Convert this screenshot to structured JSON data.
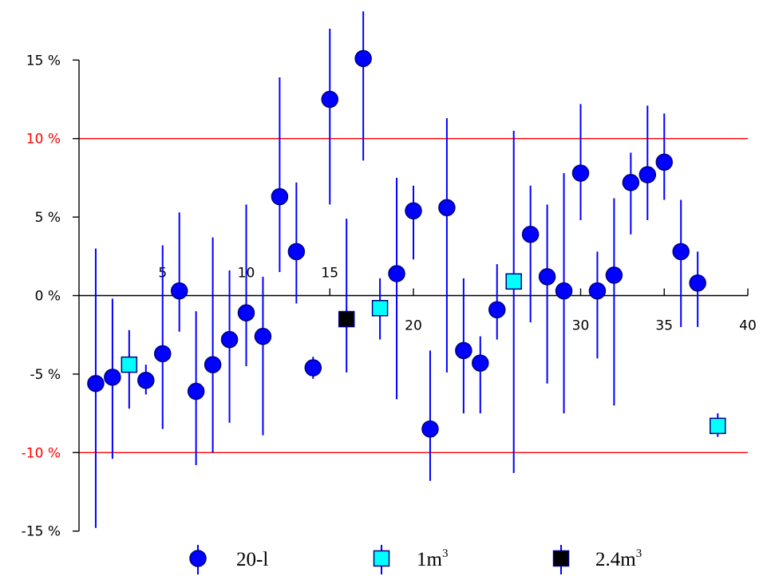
{
  "chart_data": {
    "type": "scatter",
    "title": "",
    "xlabel": "",
    "ylabel": "",
    "xlim": [
      0,
      40
    ],
    "ylim": [
      -15,
      15
    ],
    "x_ticks": [
      5,
      10,
      15,
      20,
      30,
      35,
      40
    ],
    "x_ticks_above_axis": [
      5,
      10,
      15
    ],
    "y_ticks": [
      {
        "value": 15,
        "label": "15 %",
        "color": "#000000"
      },
      {
        "value": 10,
        "label": "10 %",
        "color": "#ff0000"
      },
      {
        "value": 5,
        "label": "5 %",
        "color": "#000000"
      },
      {
        "value": 0,
        "label": "0 %",
        "color": "#000000"
      },
      {
        "value": -5,
        "label": "-5 %",
        "color": "#000000"
      },
      {
        "value": -10,
        "label": "-10 %",
        "color": "#ff0000"
      },
      {
        "value": -15,
        "label": "-15 %",
        "color": "#000000"
      }
    ],
    "reference_lines": [
      {
        "value": 10,
        "color": "#ff0000"
      },
      {
        "value": -10,
        "color": "#ff0000"
      }
    ],
    "error_bar_color": "#0000ff",
    "series": [
      {
        "name": "20-l",
        "marker": "circle",
        "fill": "#0000ff",
        "stroke": "#000080",
        "points": [
          {
            "x": 1,
            "y": -5.6,
            "lo": -14.8,
            "hi": 3.0
          },
          {
            "x": 2,
            "y": -5.2,
            "lo": -10.4,
            "hi": -0.2
          },
          {
            "x": 4,
            "y": -5.4,
            "lo": -6.3,
            "hi": -4.4
          },
          {
            "x": 5,
            "y": -3.7,
            "lo": -8.5,
            "hi": 3.2
          },
          {
            "x": 6,
            "y": 0.3,
            "lo": -2.3,
            "hi": 5.3
          },
          {
            "x": 7,
            "y": -6.1,
            "lo": -10.8,
            "hi": -1.0
          },
          {
            "x": 8,
            "y": -4.4,
            "lo": -10.0,
            "hi": 3.7
          },
          {
            "x": 9,
            "y": -2.8,
            "lo": -8.1,
            "hi": 1.6
          },
          {
            "x": 10,
            "y": -1.1,
            "lo": -4.5,
            "hi": 5.8
          },
          {
            "x": 11,
            "y": -2.6,
            "lo": -8.9,
            "hi": 1.2
          },
          {
            "x": 12,
            "y": 6.3,
            "lo": 1.5,
            "hi": 13.9
          },
          {
            "x": 13,
            "y": 2.8,
            "lo": -0.5,
            "hi": 7.2
          },
          {
            "x": 14,
            "y": -4.6,
            "lo": -5.3,
            "hi": -3.9
          },
          {
            "x": 15,
            "y": 12.5,
            "lo": 5.8,
            "hi": 17.0
          },
          {
            "x": 17,
            "y": 15.1,
            "lo": 8.6,
            "hi": 18.1
          },
          {
            "x": 19,
            "y": 1.4,
            "lo": -6.6,
            "hi": 7.5
          },
          {
            "x": 20,
            "y": 5.4,
            "lo": 2.3,
            "hi": 7.0
          },
          {
            "x": 21,
            "y": -8.5,
            "lo": -11.8,
            "hi": -3.5
          },
          {
            "x": 22,
            "y": 5.6,
            "lo": -4.9,
            "hi": 11.3
          },
          {
            "x": 23,
            "y": -3.5,
            "lo": -7.5,
            "hi": 1.1
          },
          {
            "x": 24,
            "y": -4.3,
            "lo": -7.5,
            "hi": -2.6
          },
          {
            "x": 25,
            "y": -0.9,
            "lo": -2.8,
            "hi": 2.0
          },
          {
            "x": 27,
            "y": 3.9,
            "lo": -1.7,
            "hi": 7.0
          },
          {
            "x": 28,
            "y": 1.2,
            "lo": -5.6,
            "hi": 5.8
          },
          {
            "x": 29,
            "y": 0.3,
            "lo": -7.5,
            "hi": 7.8
          },
          {
            "x": 30,
            "y": 7.8,
            "lo": 4.8,
            "hi": 12.2
          },
          {
            "x": 31,
            "y": 0.3,
            "lo": -4.0,
            "hi": 2.8
          },
          {
            "x": 32,
            "y": 1.3,
            "lo": -7.0,
            "hi": 6.2
          },
          {
            "x": 33,
            "y": 7.2,
            "lo": 3.9,
            "hi": 9.1
          },
          {
            "x": 34,
            "y": 7.7,
            "lo": 4.8,
            "hi": 12.1
          },
          {
            "x": 35,
            "y": 8.5,
            "lo": 6.1,
            "hi": 11.6
          },
          {
            "x": 36,
            "y": 2.8,
            "lo": -2.0,
            "hi": 6.1
          },
          {
            "x": 37,
            "y": 0.8,
            "lo": -2.0,
            "hi": 2.8
          }
        ]
      },
      {
        "name": "1m",
        "name_superscript": "3",
        "marker": "square",
        "fill": "#00ffff",
        "stroke": "#000080",
        "points": [
          {
            "x": 3,
            "y": -4.4,
            "lo": -7.2,
            "hi": -2.2
          },
          {
            "x": 18,
            "y": -0.8,
            "lo": -2.8,
            "hi": 1.1
          },
          {
            "x": 26,
            "y": 0.9,
            "lo": -11.3,
            "hi": 10.5
          },
          {
            "x": 38.2,
            "y": -8.3,
            "lo": -9.0,
            "hi": -7.5
          }
        ]
      },
      {
        "name": "2.4m",
        "name_superscript": "3",
        "marker": "square",
        "fill": "#000000",
        "stroke": "#000080",
        "points": [
          {
            "x": 16,
            "y": -1.5,
            "lo": -4.9,
            "hi": 4.9
          }
        ]
      }
    ],
    "legend_position": "bottom"
  }
}
